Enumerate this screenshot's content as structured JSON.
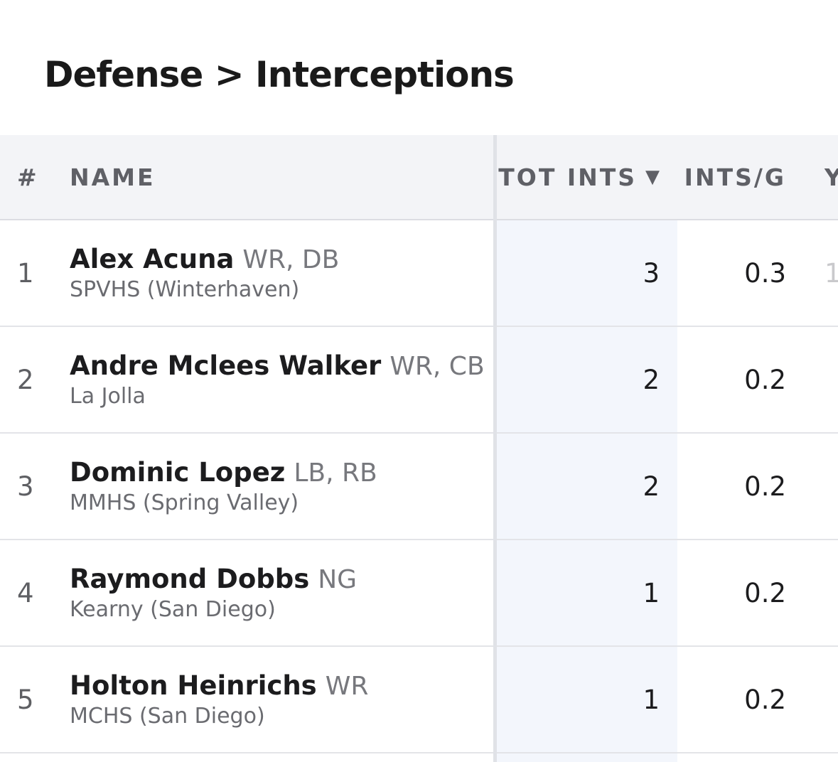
{
  "page": {
    "title": "Defense > Interceptions"
  },
  "table": {
    "headers": {
      "rank": "#",
      "name": "NAME",
      "tot_ints": "TOT INTS",
      "ints_per_game": "INTS/G",
      "more": "Y"
    },
    "sort_icon": "caret-down-icon",
    "rows": [
      {
        "rank": "1",
        "name": "Alex Acuna",
        "pos": "WR, DB",
        "team": "SPVHS (Winterhaven)",
        "tot_ints": "3",
        "ints_per_game": "0.3",
        "more": "1"
      },
      {
        "rank": "2",
        "name": "Andre Mclees Walker",
        "pos": "WR, CB",
        "team": "La Jolla",
        "tot_ints": "2",
        "ints_per_game": "0.2",
        "more": ""
      },
      {
        "rank": "3",
        "name": "Dominic Lopez",
        "pos": "LB, RB",
        "team": "MMHS (Spring Valley)",
        "tot_ints": "2",
        "ints_per_game": "0.2",
        "more": ""
      },
      {
        "rank": "4",
        "name": "Raymond Dobbs",
        "pos": "NG",
        "team": "Kearny (San Diego)",
        "tot_ints": "1",
        "ints_per_game": "0.2",
        "more": ""
      },
      {
        "rank": "5",
        "name": "Holton Heinrichs",
        "pos": "WR",
        "team": "MCHS (San Diego)",
        "tot_ints": "1",
        "ints_per_game": "0.2",
        "more": ""
      }
    ]
  }
}
